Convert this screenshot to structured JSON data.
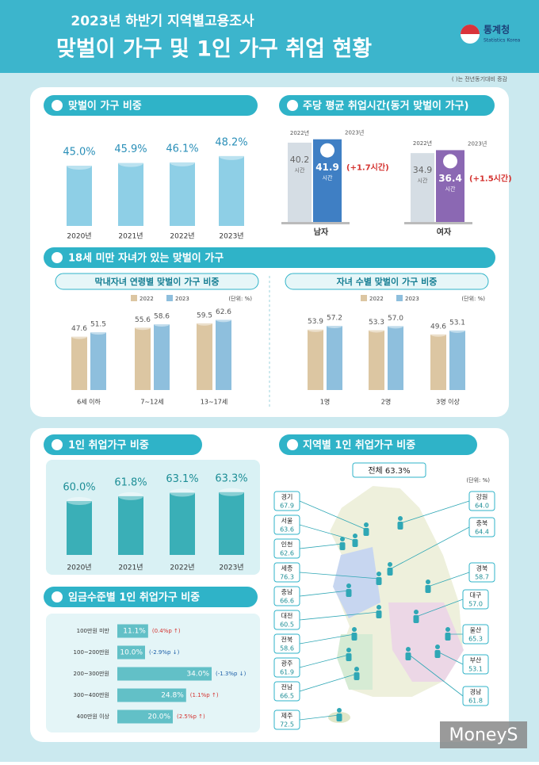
{
  "header": {
    "subtitle": "2023년 하반기 지역별고용조사",
    "title": "맞벌이 가구 및 1인 가구 취업 현황",
    "agency": "통계청",
    "agency_en": "Statistics Korea",
    "note": "( )는 전년동기대비 증감"
  },
  "sections": [
    "18세 미만 자녀가 있는 맞벌이 가구"
  ],
  "watermark": "MoneyS",
  "chart_data": [
    {
      "type": "bar",
      "title": "맞벌이 가구 비중",
      "categories": [
        "2020년",
        "2021년",
        "2022년",
        "2023년"
      ],
      "values": [
        45.0,
        45.9,
        46.1,
        48.2
      ],
      "value_labels": [
        "45.0%",
        "45.9%",
        "46.1%",
        "48.2%"
      ],
      "color": "#8ecfe6",
      "ylim": [
        25,
        50
      ]
    },
    {
      "type": "hours",
      "title": "주당 평균 취업시간(동거 맞벌이 가구)",
      "categories": [
        "남자",
        "여자"
      ],
      "unit": "시간",
      "series": [
        {
          "name": "2022년",
          "color": "#d5dde4",
          "values": [
            40.2,
            34.9
          ]
        },
        {
          "name": "2023년",
          "colors": [
            "#3f7fc4",
            "#8b68b3"
          ],
          "values": [
            41.9,
            36.4
          ]
        }
      ],
      "annotations": [
        "(+1.7시간)",
        "(+1.5시간)"
      ],
      "ylim": [
        0,
        45
      ]
    },
    {
      "type": "grouped_bar",
      "title": "막내자녀 연령별 맞벌이 가구 비중",
      "unit_note": "(단위: %)",
      "categories": [
        "6세 이하",
        "7~12세",
        "13~17세"
      ],
      "series": [
        {
          "name": "2022",
          "color": "#dcc6a2",
          "values": [
            47.6,
            55.6,
            59.5
          ],
          "value_labels": [
            "47.6",
            "55.6",
            "59.5"
          ]
        },
        {
          "name": "2023",
          "color": "#8ebfdd",
          "values": [
            51.5,
            58.6,
            62.6
          ],
          "value_labels": [
            "51.5",
            "58.6",
            "62.6"
          ]
        }
      ],
      "ylim": [
        0,
        65
      ]
    },
    {
      "type": "grouped_bar",
      "title": "자녀 수별 맞벌이 가구 비중",
      "unit_note": "(단위: %)",
      "categories": [
        "1명",
        "2명",
        "3명 이상"
      ],
      "series": [
        {
          "name": "2022",
          "color": "#dcc6a2",
          "values": [
            53.9,
            53.3,
            49.6
          ],
          "value_labels": [
            "53.9",
            "53.3",
            "49.6"
          ]
        },
        {
          "name": "2023",
          "color": "#8ebfdd",
          "values": [
            57.2,
            57.0,
            53.1
          ],
          "value_labels": [
            "57.2",
            "57.0",
            "53.1"
          ]
        }
      ],
      "ylim": [
        0,
        65
      ]
    },
    {
      "type": "bar",
      "title": "1인 취업가구 비중",
      "categories": [
        "2020년",
        "2021년",
        "2022년",
        "2023년"
      ],
      "values": [
        60.0,
        61.8,
        63.1,
        63.3
      ],
      "value_labels": [
        "60.0%",
        "61.8%",
        "63.1%",
        "63.3%"
      ],
      "color": "#3aafb7",
      "ylim": [
        40,
        65
      ]
    },
    {
      "type": "map",
      "title": "지역별 1인 취업가구 비중",
      "total": 63.3,
      "total_label": "전체 63.3%",
      "unit_note": "(단위: %)",
      "categories": [
        "경기",
        "서울",
        "인천",
        "세종",
        "충남",
        "대전",
        "전북",
        "광주",
        "전남",
        "제주",
        "강원",
        "충북",
        "경북",
        "대구",
        "울산",
        "부산",
        "경남"
      ],
      "values": [
        67.9,
        63.6,
        62.6,
        76.3,
        66.6,
        60.5,
        58.6,
        61.9,
        66.5,
        72.5,
        64.0,
        64.4,
        58.7,
        57.0,
        65.3,
        53.1,
        61.8
      ],
      "value_labels": [
        "67.9",
        "63.6",
        "62.6",
        "76.3",
        "66.6",
        "60.5",
        "58.6",
        "61.9",
        "66.5",
        "72.5",
        "64.0",
        "64.4",
        "58.7",
        "57.0",
        "65.3",
        "53.1",
        "61.8"
      ]
    },
    {
      "type": "horizontal_bar",
      "title": "임금수준별 1인 취업가구 비중",
      "categories": [
        "100만원 미만",
        "100~200만원",
        "200~300만원",
        "300~400만원",
        "400만원 이상"
      ],
      "values": [
        11.1,
        10.0,
        34.0,
        24.8,
        20.0
      ],
      "value_labels": [
        "11.1%",
        "10.0%",
        "34.0%",
        "24.8%",
        "20.0%"
      ],
      "annotations": [
        "(0.4%p ↑)",
        "(-2.9%p ↓)",
        "(-1.3%p ↓)",
        "(1.1%p ↑)",
        "(2.5%p ↑)"
      ],
      "color": "#62c0c7",
      "xlim": [
        0,
        40
      ]
    }
  ]
}
